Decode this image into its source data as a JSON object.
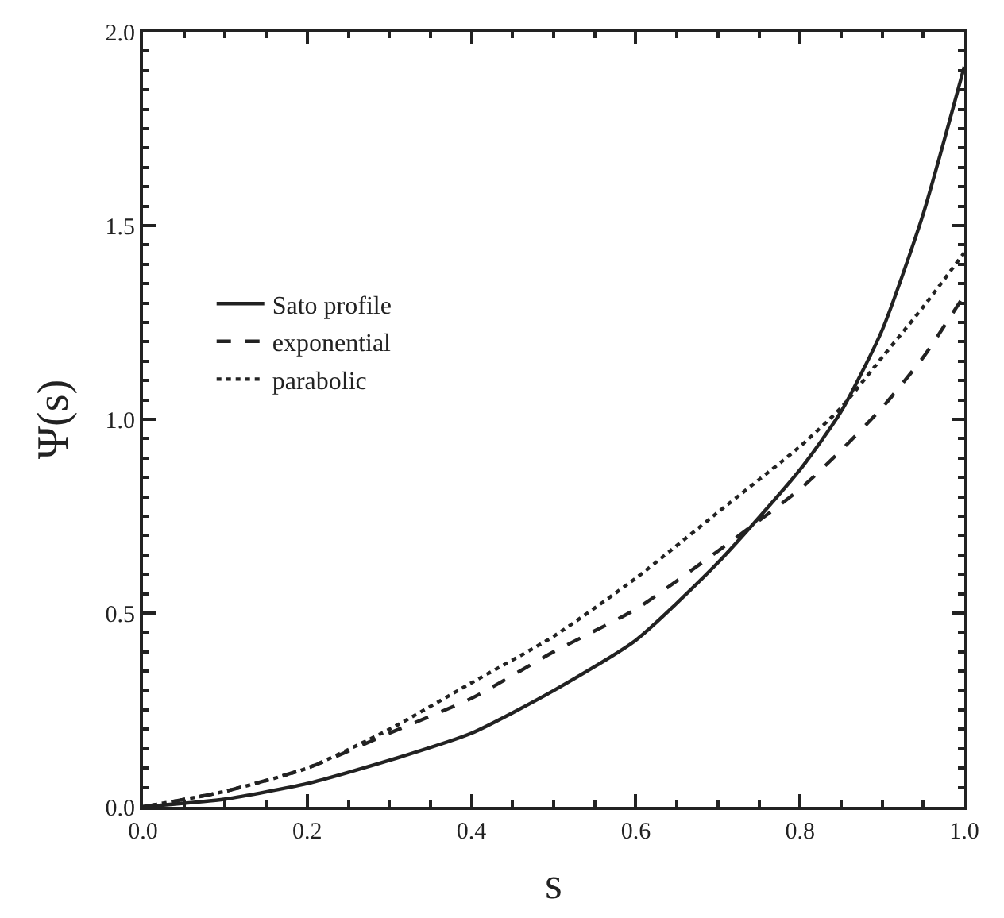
{
  "chart_data": {
    "type": "line",
    "xlabel": "s",
    "ylabel": "Ψ(s)",
    "x": [
      0,
      0.1,
      0.2,
      0.3,
      0.4,
      0.5,
      0.6,
      0.7,
      0.8,
      0.85,
      0.9,
      0.95,
      1.0
    ],
    "series": [
      {
        "name": "Sato profile",
        "color": "#222222",
        "line_style": "solid",
        "values": [
          0,
          0.02,
          0.06,
          0.12,
          0.19,
          0.3,
          0.43,
          0.63,
          0.87,
          1.02,
          1.23,
          1.53,
          1.91
        ]
      },
      {
        "name": "exponential",
        "color": "#222222",
        "line_style": "dashed",
        "values": [
          0,
          0.04,
          0.1,
          0.19,
          0.28,
          0.4,
          0.51,
          0.66,
          0.82,
          0.92,
          1.03,
          1.16,
          1.32
        ]
      },
      {
        "name": "parabolic",
        "color": "#222222",
        "line_style": "dotted",
        "values": [
          0,
          0.04,
          0.1,
          0.2,
          0.32,
          0.44,
          0.59,
          0.76,
          0.93,
          1.03,
          1.16,
          1.29,
          1.43
        ]
      }
    ],
    "xlim": [
      0,
      1
    ],
    "ylim": [
      0,
      2
    ],
    "xticks": [
      {
        "value": 0,
        "label": "0.0"
      },
      0.2,
      0.4,
      0.6,
      0.8,
      {
        "value": 1,
        "label": "1.0"
      }
    ],
    "yticks": [
      {
        "value": 0,
        "label": "0.0"
      },
      0.5,
      {
        "value": 1,
        "label": "1.0"
      },
      1.5,
      {
        "value": 2,
        "label": "2.0"
      }
    ],
    "legend": "left",
    "marker": "none"
  }
}
